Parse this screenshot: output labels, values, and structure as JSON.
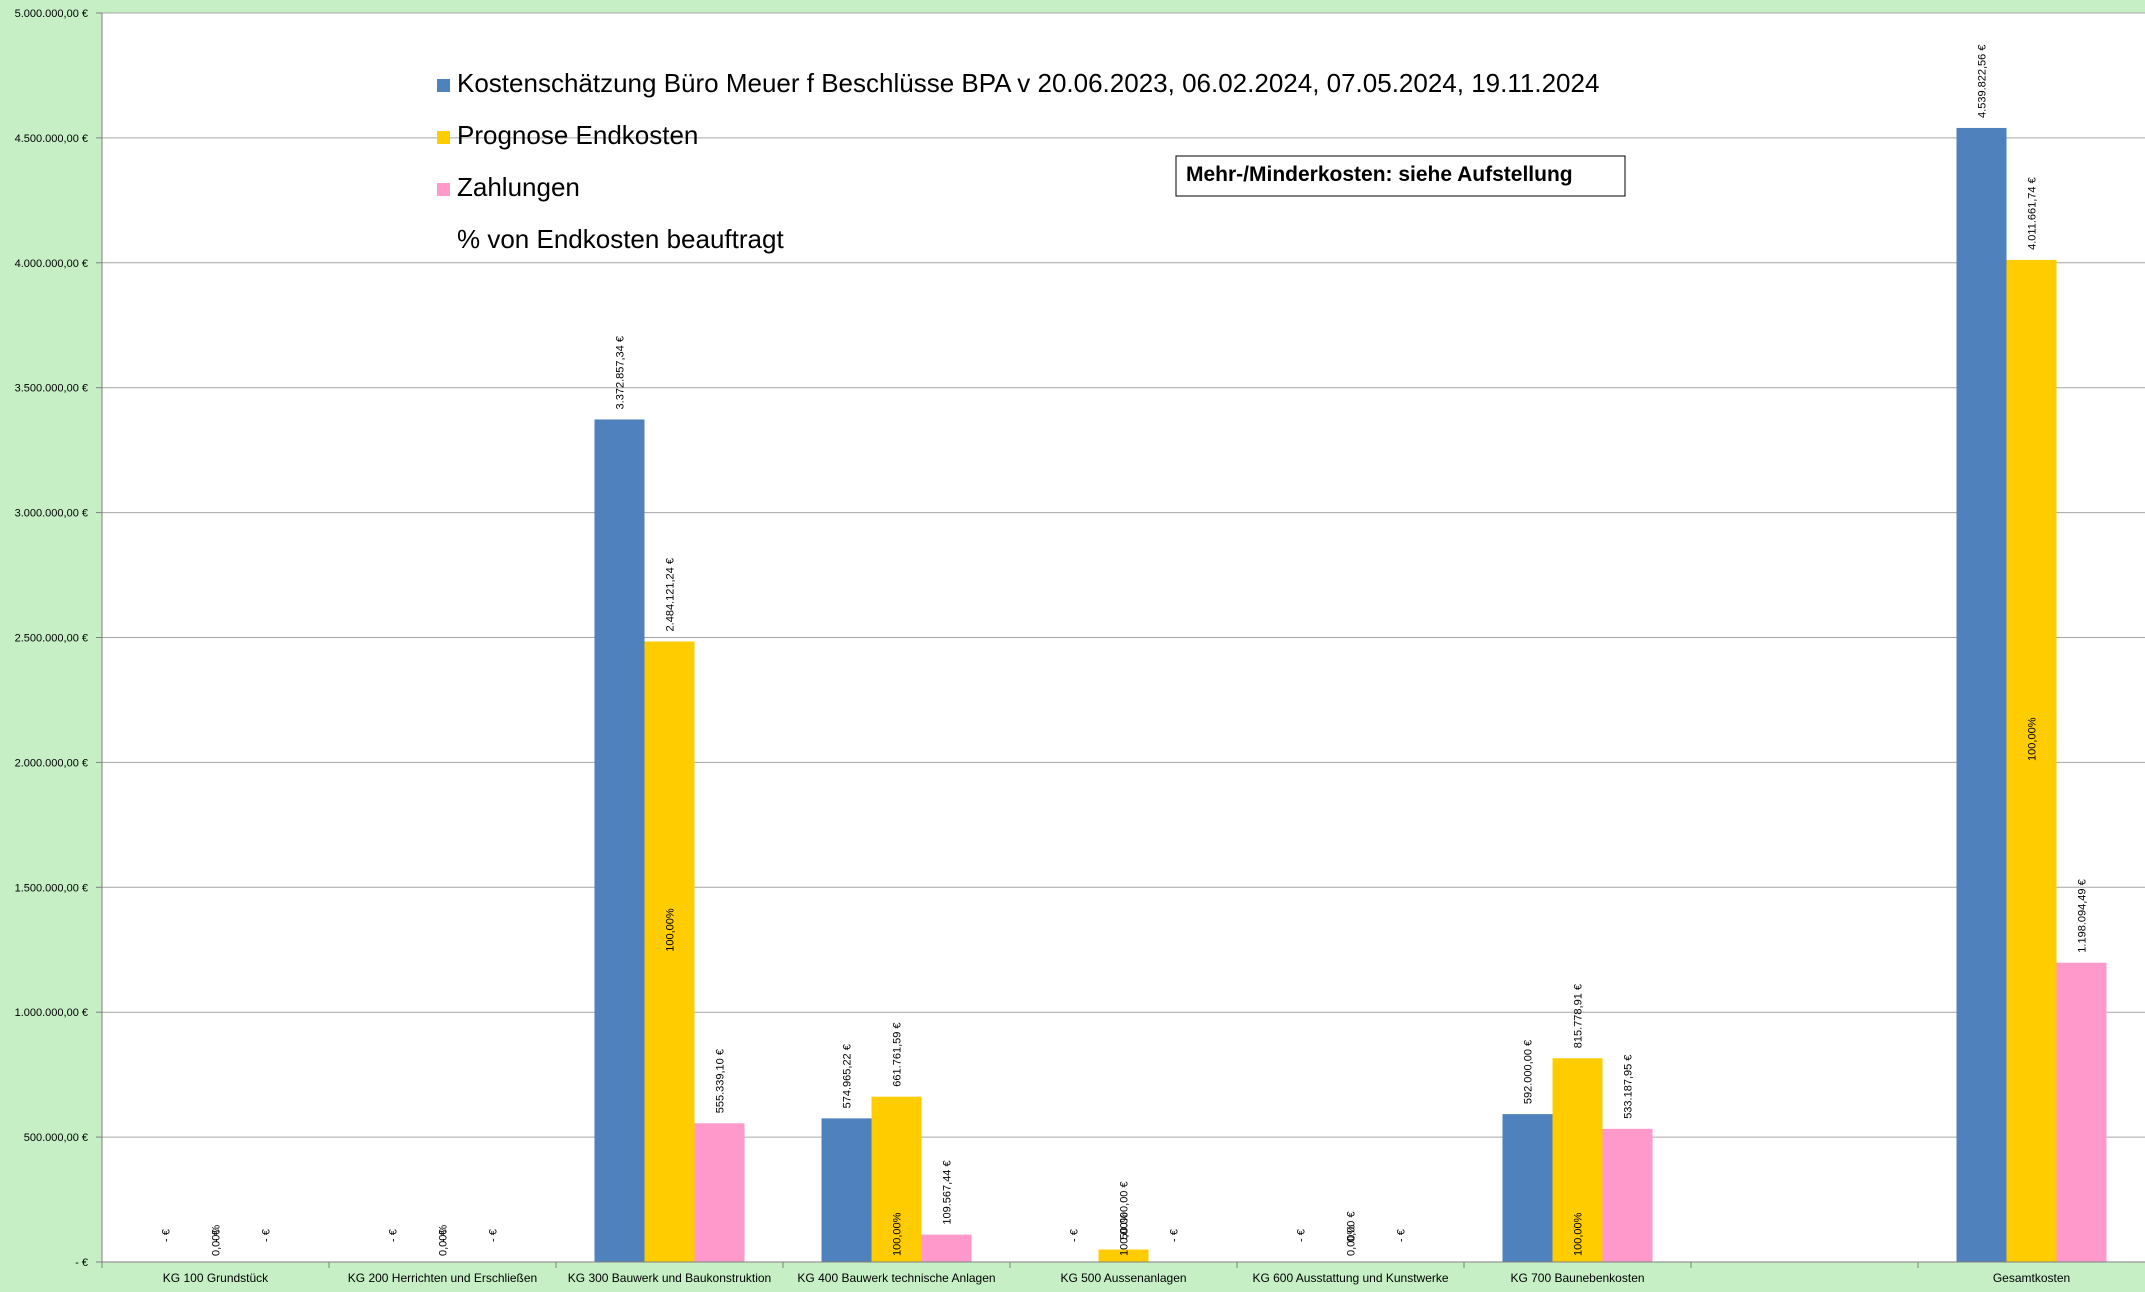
{
  "chart_data": {
    "type": "bar",
    "categories": [
      "KG 100 Grundstück",
      "KG 200 Herrichten und Erschließen",
      "KG 300 Bauwerk und Baukonstruktion",
      "KG 400 Bauwerk technische Anlagen",
      "KG 500 Aussenanlagen",
      "KG 600 Ausstattung und Kunstwerke",
      "KG 700 Baunebenkosten",
      "",
      "Gesamtkosten"
    ],
    "series": [
      {
        "name": "Kostenschätzung Büro Meuer f Beschlüsse BPA v 20.06.2023, 06.02.2024, 07.05.2024, 19.11.2024",
        "color": "#4f81bd",
        "values": [
          0,
          0,
          3372857.34,
          574965.22,
          0,
          0,
          592000.0,
          null,
          4539822.56
        ],
        "labels": [
          "-   €",
          "-   €",
          "3.372.857,34 €",
          "574.965,22 €",
          "-   €",
          "-   €",
          "592.000,00 €",
          "",
          "4.539.822,56 €"
        ]
      },
      {
        "name": "Prognose Endkosten",
        "color": "#ffcc00",
        "values": [
          0,
          0,
          2484121.24,
          661761.59,
          50000.0,
          0,
          815778.91,
          null,
          4011661.74
        ],
        "labels": [
          "-   €",
          "-   €",
          "2.484.121,24 €",
          "661.761,59 €",
          "50.000,00 €",
          "0,00 €",
          "815.778,91 €",
          "",
          "4.011.661,74 €"
        ]
      },
      {
        "name": "Zahlungen",
        "color": "#ff99cc",
        "values": [
          0,
          0,
          555339.1,
          109567.44,
          0,
          0,
          533187.95,
          null,
          1198094.49
        ],
        "labels": [
          "-   €",
          "-   €",
          "555.339,10 €",
          "109.567,44 €",
          "-   €",
          "-   €",
          "533.187,95 €",
          "",
          "1.198.094,49 €"
        ]
      }
    ],
    "percent_series": {
      "name": "% von Endkosten beauftragt",
      "labels": [
        "0,00%",
        "0,00%",
        "100,00%",
        "100,00%",
        "100,00%",
        "0,00%",
        "100,00%",
        "",
        "100,00%"
      ]
    },
    "ylim": [
      0,
      5000000
    ],
    "yticks": [
      0,
      500000,
      1000000,
      1500000,
      2000000,
      2500000,
      3000000,
      3500000,
      4000000,
      4500000,
      5000000
    ],
    "ytick_labels": [
      "-   €",
      "500.000,00 €",
      "1.000.000,00 €",
      "1.500.000,00 €",
      "2.000.000,00 €",
      "2.500.000,00 €",
      "3.000.000,00 €",
      "3.500.000,00 €",
      "4.000.000,00 €",
      "4.500.000,00 €",
      "5.000.000,00 €"
    ],
    "grid": true,
    "legend_position": "top-left",
    "annotation": "Mehr-/Minderkosten: siehe Aufstellung",
    "colors": {
      "background": "#c6efc6",
      "plot_area": "#ffffff",
      "gridline": "#a6a6a6"
    }
  }
}
